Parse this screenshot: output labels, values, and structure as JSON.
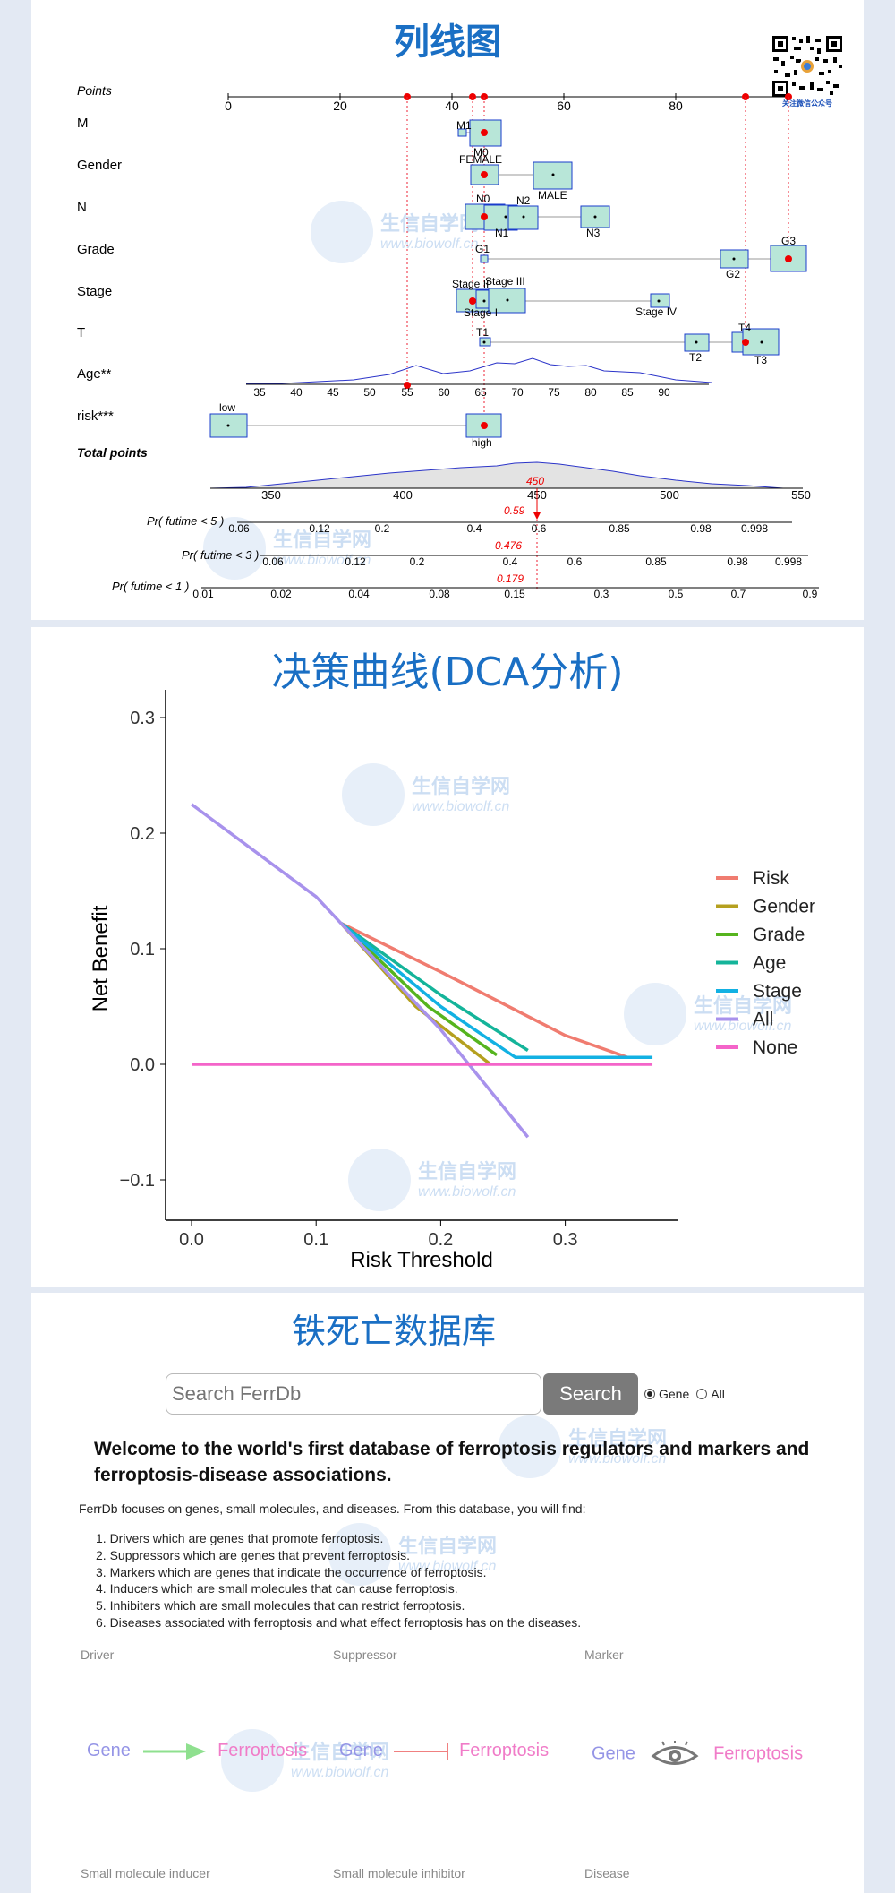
{
  "nomogram": {
    "title": "列线图",
    "row_labels": [
      "Points",
      "M",
      "Gender",
      "N",
      "Grade",
      "Stage",
      "T",
      "Age**",
      "risk***",
      "Total points"
    ],
    "points_ticks": [
      "0",
      "20",
      "40",
      "60",
      "80"
    ],
    "age_ticks": [
      "35",
      "40",
      "45",
      "50",
      "55",
      "60",
      "65",
      "70",
      "75",
      "80",
      "85",
      "90"
    ],
    "total_ticks": [
      "350",
      "400",
      "450",
      "500",
      "550"
    ],
    "total_value": "450",
    "category_labels": {
      "M": [
        "M1",
        "M0"
      ],
      "Gender": [
        "FEMALE",
        "MALE"
      ],
      "N": [
        "N0",
        "N1",
        "N2",
        "N3"
      ],
      "Grade": [
        "G1",
        "G2",
        "G3"
      ],
      "Stage": [
        "Stage II",
        "Stage III",
        "Stage I",
        "Stage IV"
      ],
      "T": [
        "T1",
        "T2",
        "T4",
        "T3"
      ],
      "risk": [
        "low",
        "high"
      ]
    },
    "prob_rows": [
      {
        "label": "Pr( futime < 5 )",
        "value": "0.59",
        "ticks": [
          "0.06",
          "0.12",
          "0.2",
          "0.4",
          "0.6",
          "0.85",
          "0.98",
          "0.998"
        ]
      },
      {
        "label": "Pr( futime < 3 )",
        "value": "0.476",
        "ticks": [
          "0.06",
          "0.12",
          "0.2",
          "0.4",
          "0.6",
          "0.85",
          "0.98",
          "0.998"
        ]
      },
      {
        "label": "Pr( futime < 1 )",
        "value": "0.179",
        "ticks": [
          "0.01",
          "0.02",
          "0.04",
          "0.08",
          "0.15",
          "0.3",
          "0.5",
          "0.7",
          "0.9"
        ]
      }
    ]
  },
  "watermark": {
    "cn": "生信自学网",
    "en": "www.biowolf.cn"
  },
  "qr_caption": "关注微信公众号",
  "dca": {
    "title": "决策曲线(DCA分析)",
    "chart_data": {
      "type": "line",
      "xlabel": "Risk Threshold",
      "ylabel": "Net Benefit",
      "xlim": [
        0.0,
        0.37
      ],
      "ylim": [
        -0.11,
        0.31
      ],
      "xticks": [
        0.0,
        0.1,
        0.2,
        0.3
      ],
      "yticks": [
        -0.1,
        0.0,
        0.1,
        0.2,
        0.3
      ],
      "legend_position": "right",
      "series": [
        {
          "name": "Risk",
          "color": "#f07c70",
          "points": [
            [
              0.12,
              0.122
            ],
            [
              0.2,
              0.08
            ],
            [
              0.3,
              0.025
            ],
            [
              0.35,
              0.006
            ],
            [
              0.37,
              0.006
            ]
          ]
        },
        {
          "name": "Gender",
          "color": "#b5a01f",
          "points": [
            [
              0.12,
              0.122
            ],
            [
              0.18,
              0.05
            ],
            [
              0.24,
              0.0
            ]
          ]
        },
        {
          "name": "Grade",
          "color": "#56b41e",
          "points": [
            [
              0.12,
              0.122
            ],
            [
              0.19,
              0.05
            ],
            [
              0.245,
              0.008
            ]
          ]
        },
        {
          "name": "Age",
          "color": "#14b49a",
          "points": [
            [
              0.12,
              0.122
            ],
            [
              0.2,
              0.06
            ],
            [
              0.27,
              0.012
            ]
          ]
        },
        {
          "name": "Stage",
          "color": "#12b1e3",
          "points": [
            [
              0.12,
              0.122
            ],
            [
              0.2,
              0.05
            ],
            [
              0.26,
              0.006
            ],
            [
              0.37,
              0.006
            ]
          ]
        },
        {
          "name": "All",
          "color": "#a892ec",
          "points": [
            [
              0.0,
              0.225
            ],
            [
              0.1,
              0.145
            ],
            [
              0.2,
              0.03
            ],
            [
              0.27,
              -0.063
            ]
          ]
        },
        {
          "name": "None",
          "color": "#f464c9",
          "points": [
            [
              0.0,
              0.0
            ],
            [
              0.37,
              0.0
            ]
          ]
        }
      ]
    }
  },
  "ferrdb": {
    "title": "铁死亡数据库",
    "search_placeholder": "Search FerrDb",
    "search_button": "Search",
    "radio_gene": "Gene",
    "radio_all": "All",
    "welcome": "Welcome to the world's first database of ferroptosis regulators and markers and ferroptosis-disease associations.",
    "intro": "FerrDb focuses on genes, small molecules, and diseases. From this database, you will find:",
    "items": [
      "1. Drivers which are genes that promote ferroptosis.",
      "2. Suppressors which are genes that prevent ferroptosis.",
      "3. Markers which are genes that indicate the occurrence of ferroptosis.",
      "4. Inducers which are small molecules that can cause ferroptosis.",
      "5. Inhibiters which are small molecules that can restrict ferroptosis.",
      "6. Diseases associated with ferroptosis and what effect ferroptosis has on the diseases."
    ],
    "categories_top": [
      "Driver",
      "Suppressor",
      "Marker"
    ],
    "diagram_words": {
      "gene": "Gene",
      "ferroptosis": "Ferroptosis"
    },
    "categories_bottom": [
      "Small molecule inducer",
      "Small molecule inhibitor",
      "Disease"
    ],
    "colors": {
      "gene": "#9595e6",
      "ferroptosis": "#f07cc8",
      "driver_arrow": "#8fe08f",
      "suppressor_bar": "#f08080",
      "marker_eye": "#777777"
    }
  }
}
